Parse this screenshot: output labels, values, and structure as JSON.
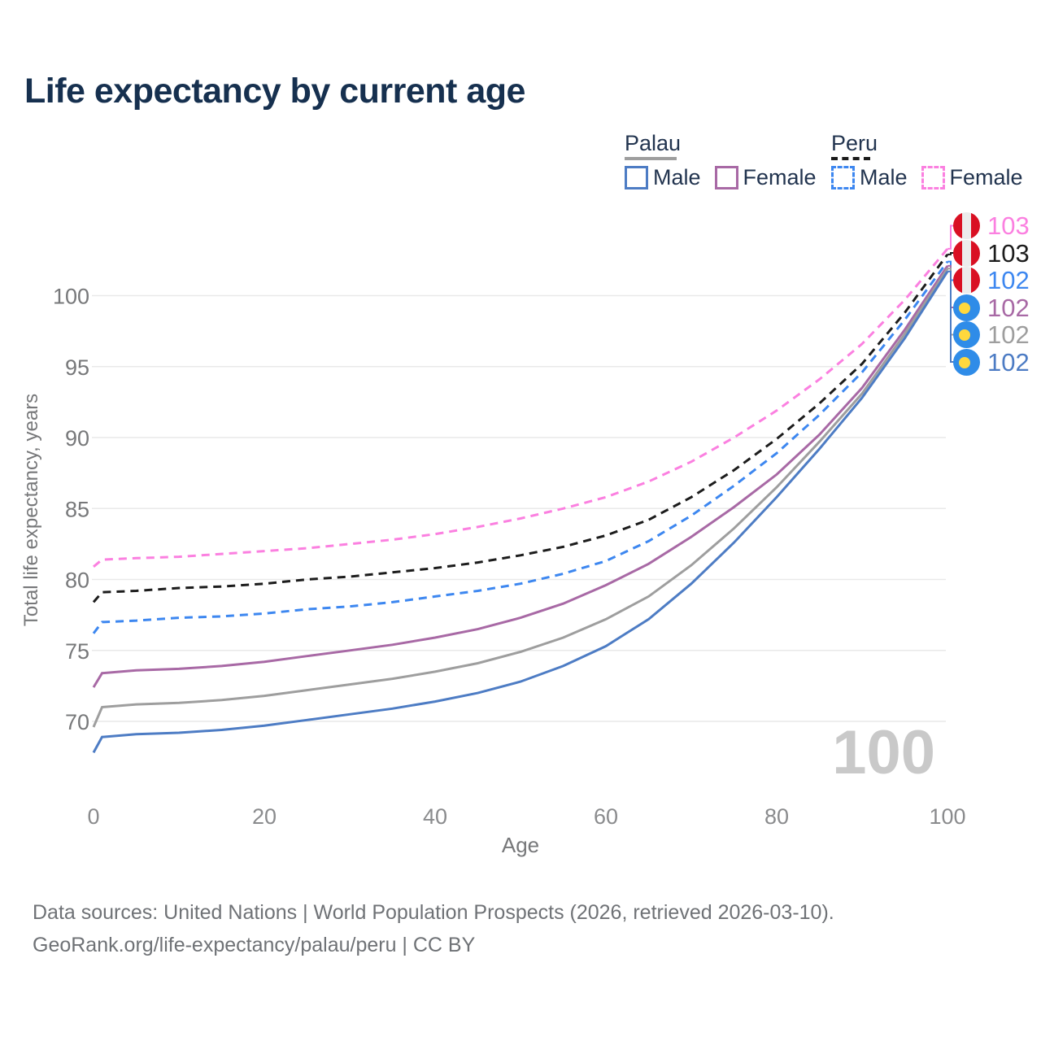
{
  "title": "Life expectancy by current age",
  "legend": {
    "groups": [
      {
        "label": "Palau",
        "line_style": "solid",
        "line_color": "#9e9e9e",
        "items": [
          {
            "label": "Male",
            "color": "#4d7cc4"
          },
          {
            "label": "Female",
            "color": "#a869a5"
          }
        ]
      },
      {
        "label": "Peru",
        "line_style": "dashed",
        "line_color": "#1a1a1a",
        "items": [
          {
            "label": "Male",
            "color": "#3d87f0"
          },
          {
            "label": "Female",
            "color": "#fb80e0"
          }
        ]
      }
    ]
  },
  "watermark": "100",
  "footer": {
    "line1": "Data sources: United Nations | World Population Prospects (2026, retrieved 2026-03-10).",
    "line2": "GeoRank.org/life-expectancy/palau/peru | CC BY"
  },
  "chart_data": {
    "type": "line",
    "title": "Life expectancy by current age",
    "xlabel": "Age",
    "ylabel": "Total life expectancy, years",
    "xlim": [
      0,
      100
    ],
    "ylim": [
      66.5,
      104.5
    ],
    "xticks": [
      0,
      20,
      40,
      60,
      80,
      100
    ],
    "yticks": [
      70,
      75,
      80,
      85,
      90,
      95,
      100
    ],
    "grid": "horizontal",
    "legend_position": "top-right",
    "x": [
      0,
      1,
      5,
      10,
      15,
      20,
      25,
      30,
      35,
      40,
      45,
      50,
      55,
      60,
      65,
      70,
      75,
      80,
      85,
      90,
      95,
      100
    ],
    "series": [
      {
        "name": "Peru Female",
        "country": "Peru",
        "sex": "Female",
        "style": "dashed",
        "color": "#fb80e0",
        "flag": "peru",
        "end_label": "103",
        "values": [
          80.9,
          81.4,
          81.5,
          81.6,
          81.8,
          82.0,
          82.2,
          82.5,
          82.8,
          83.2,
          83.7,
          84.3,
          85.0,
          85.8,
          86.9,
          88.3,
          90.0,
          91.9,
          94.1,
          96.6,
          99.7,
          103.3
        ]
      },
      {
        "name": "Peru",
        "country": "Peru",
        "sex": "Both sexes",
        "style": "dashed",
        "color": "#1c1c1c",
        "flag": "peru",
        "end_label": "103",
        "values": [
          78.4,
          79.1,
          79.2,
          79.4,
          79.5,
          79.7,
          80.0,
          80.2,
          80.5,
          80.8,
          81.2,
          81.7,
          82.3,
          83.1,
          84.2,
          85.8,
          87.7,
          89.9,
          92.4,
          95.2,
          98.8,
          102.9
        ]
      },
      {
        "name": "Peru Male",
        "country": "Peru",
        "sex": "Male",
        "style": "dashed",
        "color": "#3d87f0",
        "flag": "peru",
        "end_label": "102",
        "values": [
          76.2,
          77.0,
          77.1,
          77.3,
          77.4,
          77.6,
          77.9,
          78.1,
          78.4,
          78.8,
          79.2,
          79.7,
          80.4,
          81.3,
          82.7,
          84.5,
          86.6,
          88.9,
          91.6,
          94.6,
          98.3,
          102.4
        ]
      },
      {
        "name": "Palau Female",
        "country": "Palau",
        "sex": "Female",
        "style": "solid",
        "color": "#a869a5",
        "flag": "palau",
        "end_label": "102",
        "values": [
          72.4,
          73.4,
          73.6,
          73.7,
          73.9,
          74.2,
          74.6,
          75.0,
          75.4,
          75.9,
          76.5,
          77.3,
          78.3,
          79.6,
          81.1,
          83.0,
          85.1,
          87.4,
          90.2,
          93.5,
          97.6,
          102.1
        ]
      },
      {
        "name": "Palau",
        "country": "Palau",
        "sex": "Both sexes",
        "style": "solid",
        "color": "#9e9e9e",
        "flag": "palau",
        "end_label": "102",
        "values": [
          69.6,
          71.0,
          71.2,
          71.3,
          71.5,
          71.8,
          72.2,
          72.6,
          73.0,
          73.5,
          74.1,
          74.9,
          75.9,
          77.2,
          78.8,
          81.0,
          83.6,
          86.5,
          89.7,
          93.1,
          97.3,
          101.9
        ]
      },
      {
        "name": "Palau Male",
        "country": "Palau",
        "sex": "Male",
        "style": "solid",
        "color": "#4d7cc4",
        "flag": "palau",
        "end_label": "102",
        "values": [
          67.8,
          68.9,
          69.1,
          69.2,
          69.4,
          69.7,
          70.1,
          70.5,
          70.9,
          71.4,
          72.0,
          72.8,
          73.9,
          75.3,
          77.2,
          79.7,
          82.6,
          85.8,
          89.2,
          92.8,
          97.0,
          101.7
        ]
      }
    ]
  }
}
